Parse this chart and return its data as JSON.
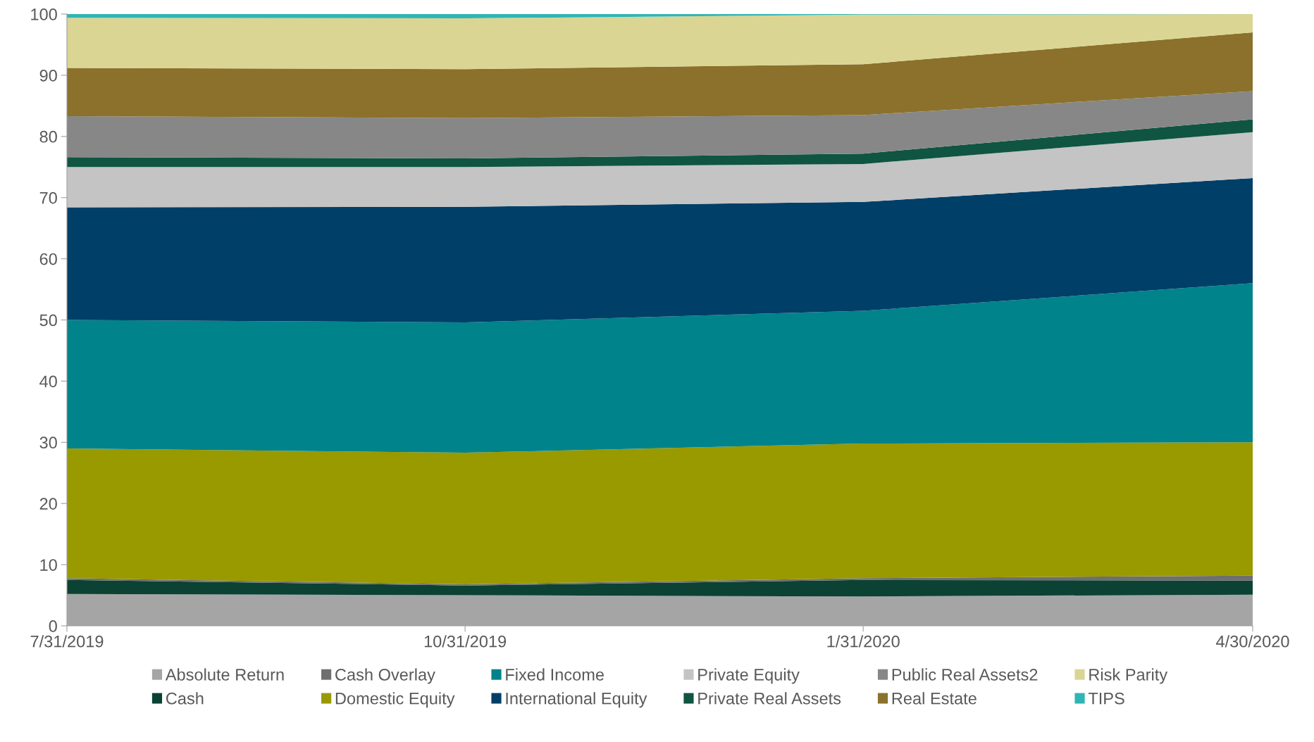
{
  "chart_data": {
    "type": "area",
    "stacked": true,
    "x": [
      "2019-07-31",
      "2019-10-31",
      "2020-01-31",
      "2020-04-30"
    ],
    "xlim": [
      "2019-07-31",
      "2020-04-30"
    ],
    "xticks": [
      {
        "value": "2019-07-31",
        "label": "7/31/2019"
      },
      {
        "value": "2019-10-31",
        "label": "10/31/2019"
      },
      {
        "value": "2020-01-31",
        "label": "1/31/2020"
      },
      {
        "value": "2020-04-30",
        "label": "4/30/2020"
      }
    ],
    "ylim": [
      0,
      100
    ],
    "yticks": [
      0,
      10,
      20,
      30,
      40,
      50,
      60,
      70,
      80,
      90,
      100
    ],
    "grid": false,
    "legend": "bottom",
    "series": [
      {
        "name": "Absolute Return",
        "color": "#a5a5a5",
        "values": [
          5.2,
          5.0,
          4.8,
          5.1
        ]
      },
      {
        "name": "Cash",
        "color": "#0b4233",
        "values": [
          2.3,
          1.6,
          2.7,
          2.3
        ]
      },
      {
        "name": "Cash Overlay",
        "color": "#6f6f6f",
        "values": [
          0.3,
          0.2,
          0.3,
          0.8
        ]
      },
      {
        "name": "Domestic Equity",
        "color": "#999900",
        "values": [
          21.2,
          21.5,
          22.0,
          21.8
        ]
      },
      {
        "name": "Fixed Income",
        "color": "#00838a",
        "values": [
          21.0,
          21.3,
          21.7,
          26.0
        ]
      },
      {
        "name": "International Equity",
        "color": "#003f68",
        "values": [
          18.4,
          18.9,
          17.8,
          17.2
        ]
      },
      {
        "name": "Private Equity",
        "color": "#c4c4c4",
        "values": [
          6.6,
          6.5,
          6.2,
          7.5
        ]
      },
      {
        "name": "Private Real Assets",
        "color": "#0f5542",
        "values": [
          1.6,
          1.4,
          1.7,
          2.1
        ]
      },
      {
        "name": "Public Real Assets2",
        "color": "#878787",
        "values": [
          6.7,
          6.6,
          6.3,
          4.6
        ]
      },
      {
        "name": "Real Estate",
        "color": "#8b712b",
        "values": [
          7.9,
          8.0,
          8.3,
          9.6
        ]
      },
      {
        "name": "Risk Parity",
        "color": "#dad593",
        "values": [
          8.2,
          8.3,
          8.1,
          3.0
        ]
      },
      {
        "name": "TIPS",
        "color": "#2eb5b5",
        "values": [
          0.6,
          0.7,
          0.1,
          0.0
        ]
      }
    ]
  }
}
